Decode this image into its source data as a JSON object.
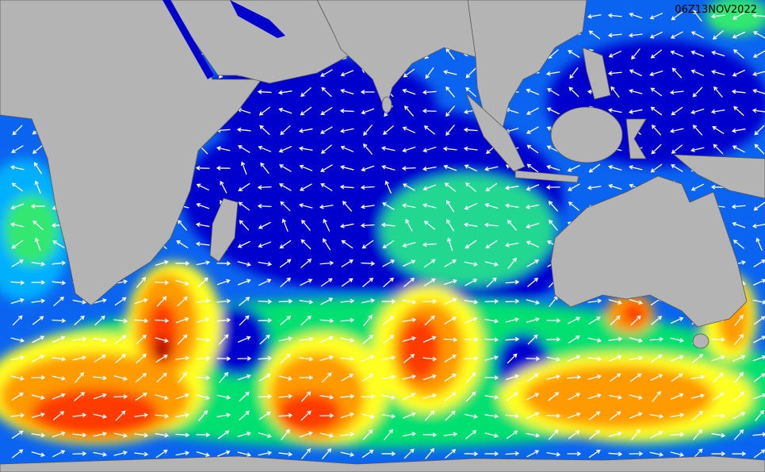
{
  "timestamp": "06Z13NOV2022"
}
